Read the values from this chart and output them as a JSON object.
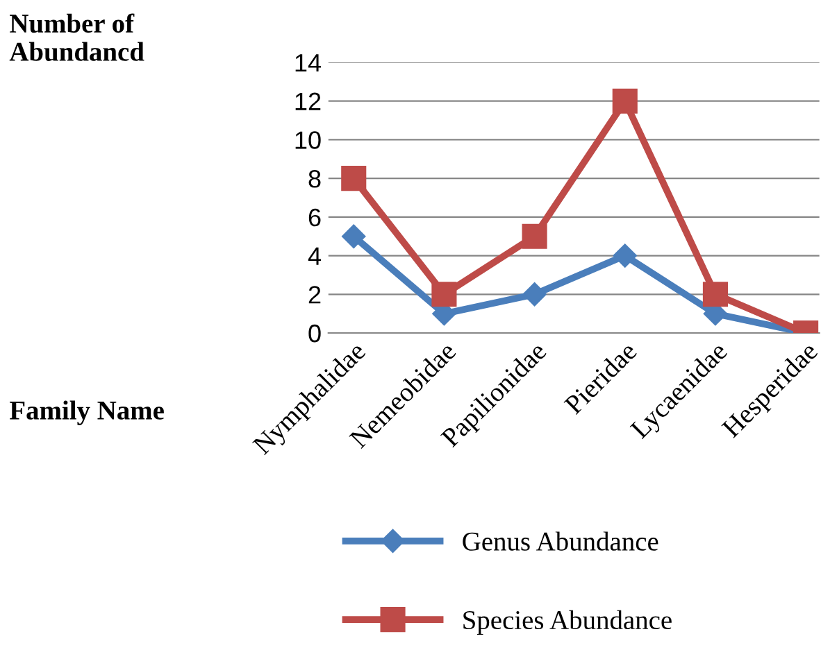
{
  "chart_data": {
    "type": "line",
    "xlabel": "Family Name",
    "ylabel": "Number of\nAbundancd",
    "categories": [
      "Nymphalidae",
      "Nemeobidae",
      "Papilionidae",
      "Pieridae",
      "Lycaenidae",
      "Hesperidae"
    ],
    "series": [
      {
        "name": "Genus Abundance",
        "color": "#4a7ebb",
        "marker": "diamond",
        "values": [
          5,
          1,
          2,
          4,
          1,
          0
        ]
      },
      {
        "name": "Species Abundance",
        "color": "#be4b48",
        "marker": "square",
        "values": [
          8,
          2,
          5,
          12,
          2,
          0
        ]
      }
    ],
    "ylim": [
      0,
      14
    ],
    "yticks": [
      0,
      2,
      4,
      6,
      8,
      10,
      12,
      14
    ],
    "grid": "y",
    "legend": "bottom"
  }
}
